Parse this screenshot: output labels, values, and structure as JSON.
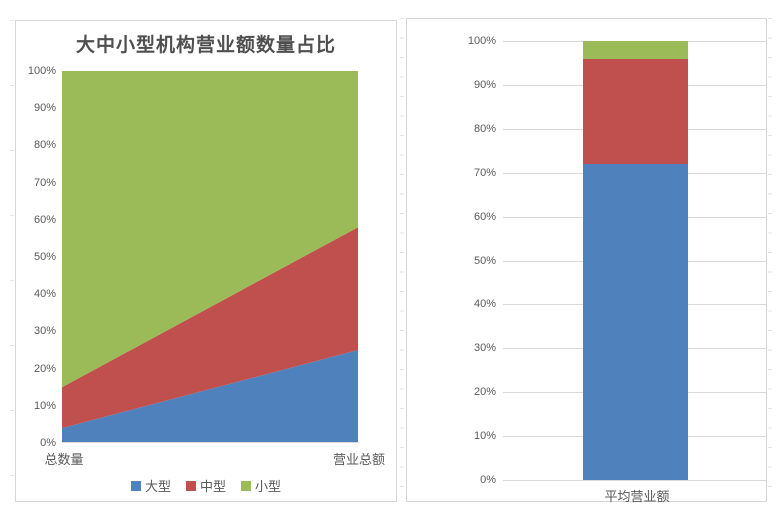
{
  "colors": {
    "series_large": "#4F81BD",
    "series_medium": "#C0504D",
    "series_small": "#9BBB59",
    "grid_line": "#D9D9D9",
    "panel_border": "#D6D6D6",
    "axis_text": "#595959",
    "title_text": "#4F4F4F",
    "background": "#FFFFFF"
  },
  "chart_data": [
    {
      "type": "area",
      "subtype": "stacked-100",
      "title": "大中小型机构营业额数量占比",
      "categories": [
        "总数量",
        "营业总额"
      ],
      "series": [
        {
          "name": "大型",
          "color": "#4F81BD",
          "values": [
            4,
            25
          ]
        },
        {
          "name": "中型",
          "color": "#C0504D",
          "values": [
            11,
            33
          ]
        },
        {
          "name": "小型",
          "color": "#9BBB59",
          "values": [
            85,
            42
          ]
        }
      ],
      "ylim": [
        0,
        100
      ],
      "y_tick_interval": 10,
      "y_tick_labels": [
        "100%",
        "90%",
        "80%",
        "70%",
        "60%",
        "50%",
        "40%",
        "30%",
        "20%",
        "10%",
        "0%"
      ],
      "grid": false,
      "legend_position": "bottom"
    },
    {
      "type": "bar",
      "subtype": "stacked-100",
      "title": "",
      "categories": [
        "平均营业额"
      ],
      "series": [
        {
          "name": "大型",
          "color": "#4F81BD",
          "values": [
            72
          ]
        },
        {
          "name": "中型",
          "color": "#C0504D",
          "values": [
            24
          ]
        },
        {
          "name": "小型",
          "color": "#9BBB59",
          "values": [
            4
          ]
        }
      ],
      "ylim": [
        0,
        100
      ],
      "y_tick_interval": 10,
      "y_tick_labels": [
        "100%",
        "90%",
        "80%",
        "70%",
        "60%",
        "50%",
        "40%",
        "30%",
        "20%",
        "10%",
        "0%"
      ],
      "grid": true,
      "legend_position": "none"
    }
  ]
}
